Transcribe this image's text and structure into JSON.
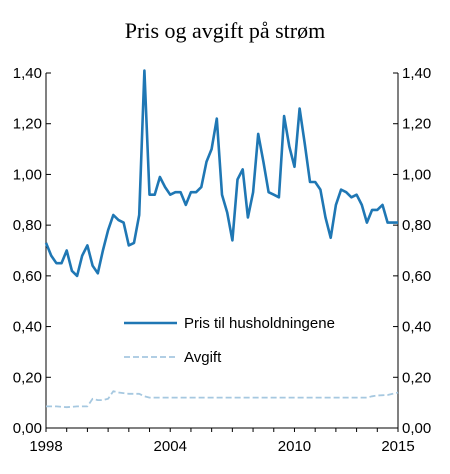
{
  "chart_data": {
    "type": "line",
    "title": "Pris og avgift på strøm",
    "xlabel": "",
    "ylabel": "",
    "xlim": [
      1998,
      2015
    ],
    "ylim": [
      0,
      1.4
    ],
    "x_ticks": [
      "1998",
      "2004",
      "2010",
      "2015"
    ],
    "x_tick_values": [
      1998,
      2004,
      2010,
      2015
    ],
    "y_ticks": [
      "0,00",
      "0,20",
      "0,40",
      "0,60",
      "0,80",
      "1,00",
      "1,20",
      "1,40"
    ],
    "y_tick_values": [
      0,
      0.2,
      0.4,
      0.6,
      0.8,
      1.0,
      1.2,
      1.4
    ],
    "grid": false,
    "legend_position": "lower-middle",
    "series": [
      {
        "name": "Pris til husholdningene",
        "color": "#1f77b4",
        "style": "solid",
        "x": [
          1998.0,
          1998.25,
          1998.5,
          1998.75,
          1999.0,
          1999.25,
          1999.5,
          1999.75,
          2000.0,
          2000.25,
          2000.5,
          2000.75,
          2001.0,
          2001.25,
          2001.5,
          2001.75,
          2002.0,
          2002.25,
          2002.5,
          2002.75,
          2003.0,
          2003.25,
          2003.5,
          2003.75,
          2004.0,
          2004.25,
          2004.5,
          2004.75,
          2005.0,
          2005.25,
          2005.5,
          2005.75,
          2006.0,
          2006.25,
          2006.5,
          2006.75,
          2007.0,
          2007.25,
          2007.5,
          2007.75,
          2008.0,
          2008.25,
          2008.5,
          2008.75,
          2009.0,
          2009.25,
          2009.5,
          2009.75,
          2010.0,
          2010.25,
          2010.5,
          2010.75,
          2011.0,
          2011.25,
          2011.5,
          2011.75,
          2012.0,
          2012.25,
          2012.5,
          2012.75,
          2013.0,
          2013.25,
          2013.5,
          2013.75,
          2014.0,
          2014.25,
          2014.5,
          2014.75,
          2015.0
        ],
        "y": [
          0.73,
          0.68,
          0.65,
          0.65,
          0.7,
          0.62,
          0.6,
          0.68,
          0.72,
          0.64,
          0.61,
          0.7,
          0.78,
          0.84,
          0.82,
          0.81,
          0.72,
          0.73,
          0.84,
          1.41,
          0.92,
          0.92,
          0.99,
          0.95,
          0.92,
          0.93,
          0.93,
          0.88,
          0.93,
          0.93,
          0.95,
          1.05,
          1.1,
          1.22,
          0.92,
          0.85,
          0.74,
          0.98,
          1.02,
          0.83,
          0.93,
          1.16,
          1.05,
          0.93,
          0.92,
          0.91,
          1.23,
          1.11,
          1.03,
          1.26,
          1.12,
          0.97,
          0.97,
          0.94,
          0.83,
          0.75,
          0.88,
          0.94,
          0.93,
          0.91,
          0.92,
          0.88,
          0.81,
          0.86,
          0.86,
          0.88,
          0.81,
          0.81,
          0.81
        ]
      },
      {
        "name": "Avgift",
        "color": "#a6c8e0",
        "style": "dashed",
        "x": [
          1998.0,
          1998.5,
          1999.0,
          1999.5,
          2000.0,
          2000.25,
          2000.5,
          2000.75,
          2001.0,
          2001.25,
          2001.5,
          2002.0,
          2002.5,
          2002.75,
          2003.0,
          2004.0,
          2006.0,
          2008.0,
          2010.0,
          2012.0,
          2013.0,
          2013.5,
          2013.75,
          2014.0,
          2014.5,
          2014.75,
          2015.0
        ],
        "y": [
          0.085,
          0.085,
          0.082,
          0.085,
          0.085,
          0.115,
          0.11,
          0.11,
          0.115,
          0.145,
          0.14,
          0.135,
          0.135,
          0.125,
          0.12,
          0.12,
          0.12,
          0.12,
          0.12,
          0.12,
          0.12,
          0.12,
          0.125,
          0.128,
          0.13,
          0.135,
          0.14
        ]
      }
    ]
  }
}
